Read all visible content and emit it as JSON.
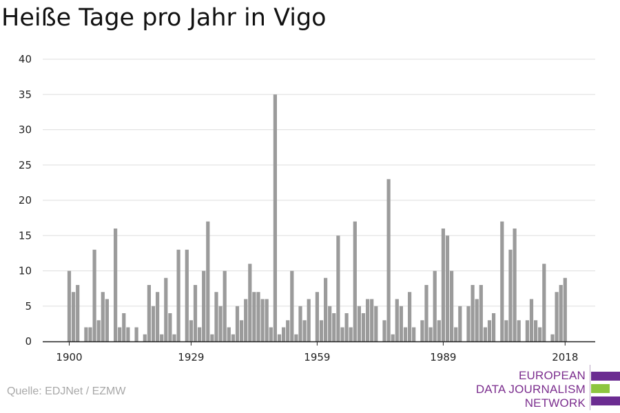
{
  "title": "Heiße Tage pro Jahr in Vigo",
  "source": "Quelle: EDJNet / EZMW",
  "logo": {
    "line1": "EUROPEAN",
    "line2": "DATA JOURNALISM",
    "line3": "NETWORK",
    "colors": {
      "purple": "#6b2c91",
      "green": "#8dc63f"
    }
  },
  "colors": {
    "bar": "#9b9b9b",
    "grid": "#dedede",
    "axis": "#222222",
    "text": "#222222"
  },
  "chart_data": {
    "type": "bar",
    "title": "Heiße Tage pro Jahr in Vigo",
    "xlabel": "",
    "ylabel": "",
    "ylim": [
      0,
      40
    ],
    "yticks": [
      0,
      5,
      10,
      15,
      20,
      25,
      30,
      35,
      40
    ],
    "xticks": [
      1900,
      1929,
      1959,
      1989,
      2018
    ],
    "grid": true,
    "x_start": 1900,
    "x_end": 2018,
    "values": [
      10,
      7,
      8,
      0,
      2,
      2,
      13,
      3,
      7,
      6,
      0,
      16,
      2,
      4,
      2,
      0,
      2,
      0,
      1,
      8,
      5,
      7,
      1,
      9,
      4,
      1,
      13,
      0,
      13,
      3,
      8,
      2,
      10,
      17,
      1,
      7,
      5,
      10,
      2,
      1,
      5,
      3,
      6,
      11,
      7,
      7,
      6,
      6,
      2,
      35,
      1,
      2,
      3,
      10,
      1,
      5,
      3,
      6,
      0,
      7,
      3,
      9,
      5,
      4,
      15,
      2,
      4,
      2,
      17,
      5,
      4,
      6,
      6,
      5,
      0,
      3,
      23,
      1,
      6,
      5,
      2,
      7,
      2,
      0,
      3,
      8,
      2,
      10,
      3,
      16,
      15,
      10,
      2,
      5,
      0,
      5,
      8,
      6,
      8,
      2,
      3,
      4,
      0,
      17,
      3,
      13,
      16,
      3,
      0,
      3,
      6,
      3,
      2,
      11,
      0,
      1,
      7,
      8,
      9
    ]
  }
}
